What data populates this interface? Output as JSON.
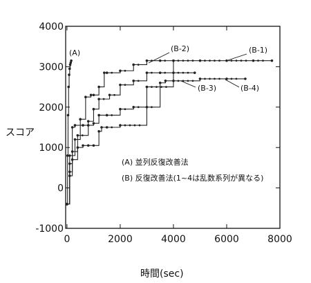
{
  "chart_data": {
    "type": "line",
    "title": "",
    "xlabel": "時間(sec)",
    "ylabel": "スコア",
    "xlim": [
      -50,
      8000
    ],
    "ylim": [
      -1000,
      4000
    ],
    "xticks": [
      0,
      2000,
      4000,
      6000,
      8000
    ],
    "yticks": [
      -1000,
      0,
      1000,
      2000,
      3000,
      4000
    ],
    "grid": false,
    "legend": [
      "(A) 並列反復改善法",
      "(B) 反復改善法(1~4は乱数系列が異なる)"
    ],
    "series": [
      {
        "name": "(A)",
        "x": [
          0,
          20,
          40,
          60,
          80,
          100,
          120,
          140,
          160
        ],
        "y": [
          -400,
          800,
          1800,
          2500,
          2800,
          2950,
          3050,
          3100,
          3150
        ]
      },
      {
        "name": "B-1",
        "x": [
          0,
          100,
          200,
          400,
          600,
          800,
          1000,
          1200,
          1300,
          1500,
          2000,
          3000,
          4000,
          5000,
          6000,
          7000,
          7700
        ],
        "y": [
          -400,
          600,
          900,
          1000,
          1050,
          1050,
          1050,
          1400,
          1500,
          1500,
          1550,
          2500,
          3150,
          3150,
          3150,
          3150,
          3150
        ]
      },
      {
        "name": "B-2",
        "x": [
          0,
          100,
          300,
          500,
          700,
          900,
          1000,
          1200,
          1400,
          1500,
          2000,
          2500,
          3000,
          3500,
          4000
        ],
        "y": [
          -400,
          800,
          1200,
          1700,
          2250,
          2300,
          2300,
          2500,
          2850,
          2850,
          2900,
          3050,
          3150,
          3150,
          3150
        ]
      },
      {
        "name": "B-3",
        "x": [
          0,
          100,
          200,
          300,
          600,
          800,
          1000,
          1200,
          1600,
          2000,
          2500,
          3000,
          3500,
          4000,
          4800
        ],
        "y": [
          -400,
          400,
          1500,
          1550,
          1550,
          1650,
          1950,
          2200,
          2300,
          2550,
          2650,
          2850,
          2850,
          2850,
          2850
        ]
      },
      {
        "name": "B-4",
        "x": [
          0,
          100,
          200,
          400,
          800,
          1000,
          1200,
          1500,
          2000,
          2500,
          3000,
          3500,
          3700,
          4000,
          5000,
          6000,
          6700
        ],
        "y": [
          -400,
          300,
          700,
          1300,
          1550,
          1600,
          1800,
          1800,
          1950,
          2000,
          2000,
          2600,
          2650,
          2650,
          2700,
          2700,
          2700
        ]
      }
    ],
    "annotations": [
      "(A)",
      "(B-1)",
      "(B-2)",
      "(B-3)",
      "(B-4)"
    ]
  }
}
